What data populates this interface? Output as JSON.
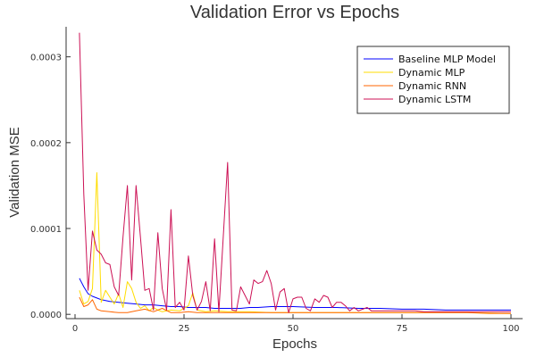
{
  "chart_data": {
    "type": "line",
    "title": "Validation Error vs Epochs",
    "xlabel": "Epochs",
    "ylabel": "Validation MSE",
    "xlim": [
      0,
      100
    ],
    "ylim": [
      -5e-06,
      0.000335
    ],
    "x_ticks": [
      0,
      25,
      50,
      75,
      100
    ],
    "x_tick_labels": [
      "0",
      "25",
      "50",
      "75",
      "100"
    ],
    "y_ticks": [
      0,
      0.0001,
      0.0002,
      0.0003
    ],
    "y_tick_labels": [
      "0.0000",
      "0.0001",
      "0.0002",
      "0.0003"
    ],
    "grid": false,
    "legend_position": "top-right",
    "series": [
      {
        "name": "Baseline MLP Model",
        "color": "#0000ff",
        "x": [
          1,
          2,
          3,
          4,
          5,
          6,
          8,
          10,
          12,
          14,
          16,
          18,
          20,
          22,
          24,
          26,
          28,
          30,
          32,
          35,
          38,
          40,
          42,
          45,
          48,
          50,
          55,
          60,
          65,
          70,
          75,
          80,
          85,
          90,
          95,
          100
        ],
        "values": [
          4.2e-05,
          3.2e-05,
          2.4e-05,
          2.1e-05,
          1.9e-05,
          1.7e-05,
          1.5e-05,
          1.4e-05,
          1.3e-05,
          1.2e-05,
          1.1e-05,
          1.1e-05,
          1e-05,
          9e-06,
          9e-06,
          8e-06,
          8e-06,
          8e-06,
          7e-06,
          7e-06,
          7e-06,
          8e-06,
          8e-06,
          9e-06,
          9e-06,
          9e-06,
          8e-06,
          8e-06,
          7e-06,
          7e-06,
          6e-06,
          6e-06,
          5e-06,
          5e-06,
          5e-06,
          5e-06
        ]
      },
      {
        "name": "Dynamic MLP",
        "color": "#ffdd00",
        "x": [
          1,
          2,
          3,
          4,
          5,
          6,
          7,
          8,
          9,
          10,
          11,
          12,
          13,
          14,
          15,
          16,
          17,
          18,
          19,
          20,
          22,
          24,
          26,
          27,
          28,
          30,
          32,
          35,
          40,
          45,
          50,
          55,
          60,
          65,
          70,
          75,
          80,
          90,
          100
        ],
        "values": [
          2.8e-05,
          1.2e-05,
          1.5e-05,
          3e-05,
          0.000165,
          1.4e-05,
          2.8e-05,
          2e-05,
          1.2e-05,
          2.4e-05,
          8e-06,
          3.8e-05,
          3e-05,
          1.4e-05,
          7e-06,
          1e-05,
          4e-06,
          8e-06,
          5e-06,
          3e-06,
          5e-06,
          4e-06,
          1e-05,
          2.5e-05,
          5e-06,
          3e-06,
          4e-06,
          3e-06,
          3e-06,
          2e-06,
          2e-06,
          2e-06,
          2e-06,
          2e-06,
          2e-06,
          2e-06,
          2e-06,
          2e-06,
          1e-06
        ]
      },
      {
        "name": "Dynamic RNN",
        "color": "#ff6600",
        "x": [
          1,
          2,
          3,
          4,
          5,
          6,
          8,
          10,
          12,
          14,
          16,
          18,
          20,
          22,
          24,
          26,
          28,
          30,
          35,
          40,
          45,
          50,
          55,
          60,
          65,
          70,
          75,
          80,
          85,
          90,
          95,
          100
        ],
        "values": [
          2e-05,
          9e-06,
          1.1e-05,
          1.7e-05,
          6e-06,
          4e-06,
          3e-06,
          2e-06,
          2e-06,
          4e-06,
          6e-06,
          3e-06,
          7e-06,
          2e-06,
          2e-06,
          3e-06,
          2e-06,
          2e-06,
          2e-06,
          2e-06,
          2e-06,
          2e-06,
          2e-06,
          2e-06,
          2e-06,
          2e-06,
          2e-06,
          2e-06,
          2e-06,
          2e-06,
          1e-06,
          1e-06
        ]
      },
      {
        "name": "Dynamic LSTM",
        "color": "#cc1155",
        "x": [
          1,
          2,
          3,
          4,
          5,
          6,
          7,
          8,
          9,
          10,
          11,
          12,
          13,
          14,
          15,
          16,
          17,
          18,
          19,
          20,
          21,
          22,
          23,
          24,
          25,
          26,
          27,
          28,
          29,
          30,
          31,
          32,
          33,
          34,
          35,
          36,
          37,
          38,
          39,
          40,
          41,
          42,
          43,
          44,
          45,
          46,
          47,
          48,
          49,
          50,
          51,
          52,
          53,
          54,
          55,
          56,
          57,
          58,
          59,
          60,
          61,
          62,
          63,
          64,
          65,
          66,
          67,
          68,
          70,
          72,
          75,
          78,
          80,
          85,
          90,
          95,
          100
        ],
        "values": [
          0.000328,
          0.00014,
          2.8e-05,
          9.7e-05,
          7.5e-05,
          7e-05,
          6e-05,
          5.8e-05,
          3.2e-05,
          2.2e-05,
          9e-05,
          0.00015,
          4e-05,
          0.00015,
          9e-05,
          2.8e-05,
          3e-05,
          5e-06,
          9.5e-05,
          3e-05,
          5e-06,
          0.000122,
          8e-06,
          1.4e-05,
          5e-06,
          6.8e-05,
          2.2e-05,
          5e-06,
          1.5e-05,
          3.8e-05,
          4e-06,
          8.8e-05,
          3e-06,
          9e-05,
          0.000177,
          5e-06,
          4e-06,
          3.2e-05,
          2.2e-05,
          1.2e-05,
          4e-05,
          3.6e-05,
          3.8e-05,
          5.1e-05,
          3.6e-05,
          5e-06,
          2.6e-05,
          3e-05,
          2e-06,
          1.8e-05,
          2e-05,
          2e-05,
          7e-06,
          4e-06,
          1.8e-05,
          1.4e-05,
          2.2e-05,
          2e-05,
          8e-06,
          1.4e-05,
          1.4e-05,
          1e-05,
          4e-06,
          8e-06,
          4e-06,
          6e-06,
          8e-06,
          4e-06,
          4e-06,
          4e-06,
          4e-06,
          4e-06,
          3e-06,
          3e-06,
          3e-06,
          3e-06,
          3e-06
        ]
      }
    ]
  }
}
